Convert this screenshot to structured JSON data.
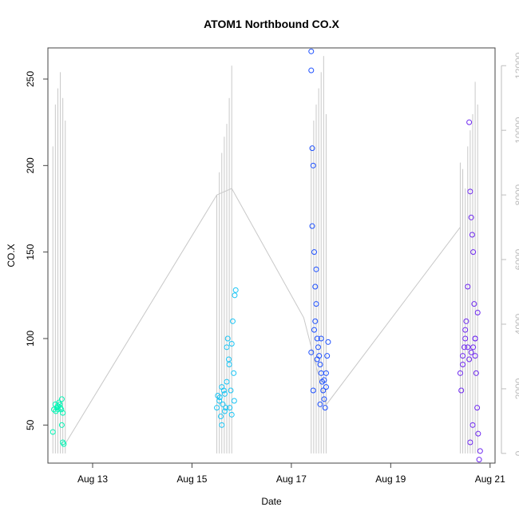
{
  "chart_data": {
    "type": "scatter",
    "title": "ATOM1 Northbound CO.X",
    "xlabel": "Date",
    "ylabel": "CO.X",
    "x_ticks": [
      "Aug 13",
      "Aug 15",
      "Aug 17",
      "Aug 19",
      "Aug 21"
    ],
    "x_tick_values": [
      13,
      15,
      17,
      19,
      21
    ],
    "xlim": [
      12.1,
      21.1
    ],
    "y_ticks": [
      50,
      100,
      150,
      200,
      250
    ],
    "ylim": [
      28,
      268
    ],
    "y2_ticks": [
      0,
      2000,
      4000,
      6000,
      8000,
      10000,
      12000
    ],
    "y2lim": [
      -300,
      12550
    ],
    "y2_color": "#bdbdbd",
    "line_color": "#c8c8c8",
    "grid": false,
    "legend": "none",
    "series": [
      {
        "color": "#00f5b4",
        "points": [
          [
            12.2,
            46
          ],
          [
            12.22,
            59
          ],
          [
            12.25,
            62
          ],
          [
            12.28,
            60
          ],
          [
            12.3,
            61
          ],
          [
            12.32,
            63
          ],
          [
            12.35,
            60
          ],
          [
            12.37,
            59
          ],
          [
            12.38,
            65
          ],
          [
            12.4,
            57
          ],
          [
            12.38,
            50
          ],
          [
            12.4,
            40
          ],
          [
            12.42,
            39
          ],
          [
            12.26,
            58
          ],
          [
            12.34,
            62
          ],
          [
            12.3,
            59
          ]
        ]
      },
      {
        "color": "#19c5f5",
        "points": [
          [
            15.5,
            60
          ],
          [
            15.52,
            67
          ],
          [
            15.55,
            64
          ],
          [
            15.58,
            55
          ],
          [
            15.6,
            50
          ],
          [
            15.62,
            62
          ],
          [
            15.64,
            70
          ],
          [
            15.66,
            58
          ],
          [
            15.68,
            60
          ],
          [
            15.7,
            95
          ],
          [
            15.72,
            100
          ],
          [
            15.74,
            88
          ],
          [
            15.76,
            60
          ],
          [
            15.78,
            70
          ],
          [
            15.8,
            97
          ],
          [
            15.82,
            110
          ],
          [
            15.84,
            80
          ],
          [
            15.86,
            125
          ],
          [
            15.88,
            128
          ],
          [
            15.7,
            75
          ],
          [
            15.75,
            85
          ],
          [
            15.66,
            68
          ],
          [
            15.56,
            66
          ],
          [
            15.6,
            72
          ],
          [
            15.8,
            56
          ],
          [
            15.85,
            64
          ]
        ]
      },
      {
        "color": "#1e50ff",
        "points": [
          [
            17.4,
            266
          ],
          [
            17.4,
            255
          ],
          [
            17.42,
            210
          ],
          [
            17.44,
            200
          ],
          [
            17.42,
            165
          ],
          [
            17.46,
            150
          ],
          [
            17.48,
            130
          ],
          [
            17.5,
            120
          ],
          [
            17.52,
            100
          ],
          [
            17.54,
            95
          ],
          [
            17.56,
            90
          ],
          [
            17.58,
            85
          ],
          [
            17.6,
            80
          ],
          [
            17.62,
            75
          ],
          [
            17.64,
            70
          ],
          [
            17.66,
            65
          ],
          [
            17.68,
            60
          ],
          [
            17.7,
            80
          ],
          [
            17.72,
            90
          ],
          [
            17.74,
            98
          ],
          [
            17.44,
            70
          ],
          [
            17.48,
            110
          ],
          [
            17.5,
            140
          ],
          [
            17.52,
            88
          ],
          [
            17.6,
            100
          ],
          [
            17.66,
            76
          ],
          [
            17.7,
            72
          ],
          [
            17.58,
            62
          ],
          [
            17.46,
            105
          ],
          [
            17.4,
            92
          ]
        ]
      },
      {
        "color": "#6e28f0",
        "points": [
          [
            20.4,
            80
          ],
          [
            20.42,
            70
          ],
          [
            20.45,
            90
          ],
          [
            20.48,
            95
          ],
          [
            20.5,
            100
          ],
          [
            20.52,
            110
          ],
          [
            20.55,
            130
          ],
          [
            20.58,
            225
          ],
          [
            20.6,
            185
          ],
          [
            20.62,
            170
          ],
          [
            20.64,
            160
          ],
          [
            20.66,
            150
          ],
          [
            20.68,
            120
          ],
          [
            20.7,
            100
          ],
          [
            20.72,
            80
          ],
          [
            20.74,
            60
          ],
          [
            20.76,
            45
          ],
          [
            20.78,
            30
          ],
          [
            20.8,
            35
          ],
          [
            20.6,
            40
          ],
          [
            20.65,
            50
          ],
          [
            20.7,
            90
          ],
          [
            20.55,
            95
          ],
          [
            20.5,
            105
          ],
          [
            20.45,
            85
          ],
          [
            20.62,
            92
          ],
          [
            20.7,
            100
          ],
          [
            20.75,
            115
          ],
          [
            20.66,
            95
          ],
          [
            20.58,
            88
          ]
        ]
      }
    ],
    "y2_segments": [
      [
        [
          12.2,
          0
        ],
        [
          12.2,
          9500
        ]
      ],
      [
        [
          12.25,
          0
        ],
        [
          12.25,
          10800
        ]
      ],
      [
        [
          12.3,
          0
        ],
        [
          12.3,
          11300
        ]
      ],
      [
        [
          12.35,
          0
        ],
        [
          12.35,
          11800
        ]
      ],
      [
        [
          12.4,
          0
        ],
        [
          12.4,
          11000
        ]
      ],
      [
        [
          12.45,
          0
        ],
        [
          12.45,
          10300
        ]
      ],
      [
        [
          15.5,
          0
        ],
        [
          15.5,
          8000
        ]
      ],
      [
        [
          15.55,
          0
        ],
        [
          15.55,
          8700
        ]
      ],
      [
        [
          15.6,
          0
        ],
        [
          15.6,
          9300
        ]
      ],
      [
        [
          15.65,
          0
        ],
        [
          15.65,
          9800
        ]
      ],
      [
        [
          15.7,
          0
        ],
        [
          15.7,
          10200
        ]
      ],
      [
        [
          15.75,
          0
        ],
        [
          15.75,
          11000
        ]
      ],
      [
        [
          15.8,
          0
        ],
        [
          15.8,
          12000
        ]
      ],
      [
        [
          17.4,
          0
        ],
        [
          17.4,
          9500
        ]
      ],
      [
        [
          17.45,
          0
        ],
        [
          17.45,
          10300
        ]
      ],
      [
        [
          17.5,
          0
        ],
        [
          17.5,
          10800
        ]
      ],
      [
        [
          17.55,
          0
        ],
        [
          17.55,
          11300
        ]
      ],
      [
        [
          17.6,
          0
        ],
        [
          17.6,
          11800
        ]
      ],
      [
        [
          17.65,
          0
        ],
        [
          17.65,
          12300
        ]
      ],
      [
        [
          17.7,
          0
        ],
        [
          17.7,
          10500
        ]
      ],
      [
        [
          20.4,
          0
        ],
        [
          20.4,
          9000
        ]
      ],
      [
        [
          20.45,
          0
        ],
        [
          20.45,
          8800
        ]
      ],
      [
        [
          20.5,
          0
        ],
        [
          20.5,
          8200
        ]
      ],
      [
        [
          20.55,
          0
        ],
        [
          20.55,
          9500
        ]
      ],
      [
        [
          20.6,
          0
        ],
        [
          20.6,
          10000
        ]
      ],
      [
        [
          20.65,
          0
        ],
        [
          20.65,
          10500
        ]
      ],
      [
        [
          20.7,
          0
        ],
        [
          20.7,
          11500
        ]
      ],
      [
        [
          20.75,
          0
        ],
        [
          20.75,
          10800
        ]
      ]
    ],
    "y2_path": [
      [
        12.45,
        300
      ],
      [
        15.5,
        8000
      ],
      [
        15.8,
        8200
      ],
      [
        17.25,
        4200
      ],
      [
        17.7,
        1500
      ],
      [
        20.4,
        7000
      ]
    ]
  }
}
